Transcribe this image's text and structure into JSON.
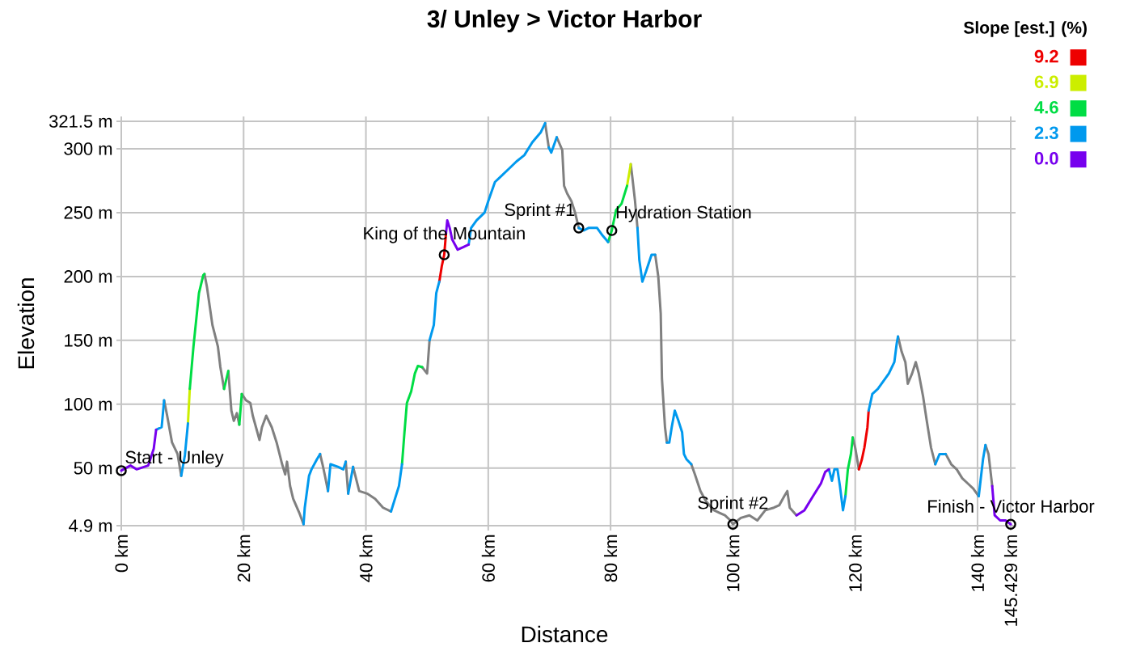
{
  "chart_data": {
    "type": "line",
    "title": "3/ Unley > Victor Harbor",
    "xlabel": "Distance",
    "ylabel": "Elevation",
    "legend_title": "Slope [est.] (%)",
    "legend": "top right",
    "line_style": "solid",
    "series": [
      {
        "color": "#808080",
        "x": [
          7.0,
          7.5,
          8.3,
          9.2,
          9.8,
          10.1,
          13.6,
          14.0,
          14.9,
          15.8,
          16.2,
          16.8,
          17.15,
          17.5,
          18.0,
          18.4,
          18.9,
          19.3,
          19.5,
          19.7,
          20.4,
          21.1,
          21.5,
          22.6,
          23.0,
          23.7,
          24.6,
          25.4,
          26.3,
          26.8,
          27.1,
          27.6,
          28.1,
          29.1,
          29.8,
          29.9,
          32.5,
          32.9,
          33.3,
          33.8,
          34.0,
          36.7,
          37.1,
          37.5,
          37.9,
          38.9,
          40.2,
          41.5,
          42.8,
          44.1,
          44.75,
          49.2,
          50.0,
          50.4,
          50.75,
          69.3,
          69.9,
          70.1,
          71.2,
          72.1,
          72.4,
          72.9,
          73.6,
          74.2,
          74.8,
          75.2,
          83.3,
          83.6,
          84.0,
          84.4,
          84.55,
          87.3,
          87.8,
          88.2,
          88.4,
          88.9,
          89.2,
          89.4,
          93.2,
          93.8,
          94.7,
          95.6,
          96.9,
          97.8,
          98.7,
          99.6,
          100.0,
          101.3,
          102.7,
          104.0,
          105.3,
          106.7,
          107.6,
          108.4,
          108.9,
          109.3,
          110.4,
          111.05,
          119.6,
          120.0,
          120.6,
          120.85,
          127.0,
          127.6,
          128.2,
          128.6,
          129.3,
          129.9,
          130.4,
          131.1,
          131.7,
          132.4,
          133.1,
          133.45,
          134.8,
          135.7,
          136.6,
          137.5,
          138.4,
          139.3,
          140.2,
          140.55,
          141.3,
          141.8,
          142.4
        ],
        "values": [
          103,
          91,
          70,
          61,
          44,
          null,
          202,
          192,
          162,
          145,
          129,
          112,
          null,
          126,
          95,
          87,
          93,
          84,
          null,
          108,
          103,
          101,
          91,
          72,
          82,
          91,
          82,
          70,
          53,
          45,
          55,
          36,
          26,
          15,
          6,
          null,
          61,
          53,
          44,
          32,
          null,
          55,
          30,
          null,
          51,
          32,
          30,
          26,
          19,
          16,
          null,
          129,
          124,
          150,
          null,
          320,
          301,
          null,
          309,
          299,
          271,
          265,
          259,
          250,
          238,
          null,
          288,
          276,
          259,
          238,
          null,
          217,
          200,
          171,
          120,
          82,
          70,
          null,
          53,
          45,
          32,
          24,
          17,
          15,
          13,
          9,
          6,
          11,
          13,
          9,
          17,
          19,
          21,
          28,
          32,
          19,
          13,
          null,
          74,
          66,
          49,
          null,
          153,
          141,
          133,
          116,
          124,
          133,
          124,
          106,
          87,
          66,
          53,
          null,
          61,
          53,
          49,
          42,
          38,
          34,
          28,
          null,
          68,
          61,
          36
        ]
      },
      {
        "name": "9.2",
        "color": "#ee0000",
        "x": [
          52.0,
          52.4,
          52.8,
          53.1,
          53.2,
          120.6,
          121.1,
          121.5,
          122.0,
          122.2
        ],
        "values": [
          196,
          208,
          217,
          234,
          null,
          49,
          57,
          66,
          82,
          95
        ]
      },
      {
        "name": "6.9",
        "color": "#ccee00",
        "x": [
          10.9,
          11.2,
          11.5,
          82.7,
          83.3
        ],
        "values": [
          85,
          112,
          null,
          271,
          288
        ]
      },
      {
        "name": "4.6",
        "color": "#00dd44",
        "x": [
          11.2,
          11.8,
          12.7,
          13.4,
          13.6,
          13.8,
          16.8,
          17.5,
          17.75,
          19.3,
          19.7,
          20.05,
          45.9,
          46.3,
          46.7,
          47.4,
          48.0,
          48.5,
          49.2,
          49.6,
          79.6,
          80.2,
          80.9,
          81.8,
          82.7,
          83.0,
          118.4,
          118.8,
          119.3,
          119.6
        ],
        "values": [
          112,
          145,
          187,
          201,
          202,
          null,
          112,
          126,
          null,
          84,
          108,
          null,
          53,
          78,
          101,
          110,
          124,
          130,
          129,
          null,
          227,
          236,
          252,
          257,
          271,
          null,
          28,
          49,
          61,
          74
        ]
      },
      {
        "name": "2.3",
        "color": "#0099ee",
        "x": [
          5.7,
          6.6,
          7.0,
          7.25,
          9.8,
          10.4,
          10.9,
          11.05,
          29.8,
          30.0,
          30.7,
          31.1,
          32.0,
          32.5,
          32.7,
          33.8,
          34.2,
          35.4,
          36.3,
          36.7,
          36.9,
          37.1,
          37.9,
          38.4,
          44.1,
          45.4,
          45.9,
          46.1,
          50.4,
          51.1,
          51.5,
          52.0,
          52.2,
          56.8,
          57.2,
          58.1,
          59.4,
          60.0,
          61.1,
          62.0,
          63.3,
          64.6,
          65.9,
          67.2,
          68.6,
          69.3,
          69.6,
          69.9,
          70.3,
          71.2,
          71.65,
          74.8,
          75.6,
          76.4,
          77.8,
          78.7,
          79.6,
          79.9,
          84.4,
          84.7,
          85.2,
          85.8,
          86.7,
          87.3,
          87.55,
          89.2,
          89.6,
          90.0,
          90.5,
          91.1,
          91.7,
          92.0,
          92.4,
          93.2,
          93.5,
          115.7,
          116.2,
          116.6,
          117.1,
          117.5,
          118.0,
          118.4,
          118.6,
          122.2,
          122.8,
          123.7,
          124.6,
          125.5,
          126.4,
          126.8,
          127.0,
          127.3,
          133.1,
          133.8,
          134.8,
          135.25,
          140.2,
          140.9,
          141.3
        ],
        "values": [
          80,
          82,
          103,
          null,
          44,
          60,
          85,
          null,
          6,
          19,
          44,
          49,
          57,
          61,
          null,
          32,
          53,
          51,
          49,
          55,
          null,
          30,
          51,
          null,
          16,
          36,
          53,
          null,
          150,
          162,
          187,
          196,
          null,
          225,
          238,
          244,
          250,
          259,
          274,
          278,
          284,
          290,
          295,
          305,
          313,
          320,
          null,
          301,
          297,
          309,
          null,
          238,
          236,
          238,
          238,
          232,
          227,
          null,
          238,
          213,
          196,
          204,
          217,
          217,
          null,
          70,
          70,
          82,
          95,
          87,
          78,
          61,
          57,
          53,
          null,
          49,
          40,
          49,
          49,
          36,
          17,
          28,
          null,
          95,
          108,
          112,
          118,
          124,
          133,
          148,
          153,
          null,
          53,
          61,
          61,
          null,
          28,
          57,
          68
        ]
      },
      {
        "name": "0.0",
        "color": "#7700ee",
        "x": [
          0,
          1.5,
          2.5,
          4.4,
          5.3,
          5.7,
          6.15,
          53.1,
          53.3,
          53.7,
          54.1,
          55.0,
          55.9,
          56.8,
          57.0,
          110.4,
          111.7,
          113.1,
          114.4,
          115.1,
          115.7,
          115.95,
          142.4,
          142.8,
          143.7,
          144.6,
          145.429
        ],
        "values": [
          48,
          52,
          49,
          52,
          65,
          80,
          null,
          234,
          244,
          238,
          229,
          221,
          223,
          225,
          null,
          13,
          17,
          28,
          38,
          47,
          49,
          null,
          36,
          13,
          9,
          9,
          6
        ]
      }
    ],
    "xlim": [
      0,
      145.429
    ],
    "xticks": [
      {
        "value": 0,
        "label": "0 km"
      },
      {
        "value": 20,
        "label": "20 km"
      },
      {
        "value": 40,
        "label": "40 km"
      },
      {
        "value": 60,
        "label": "60 km"
      },
      {
        "value": 80,
        "label": "80 km"
      },
      {
        "value": 100,
        "label": "100 km"
      },
      {
        "value": 120,
        "label": "120 km"
      },
      {
        "value": 140,
        "label": "140 km"
      },
      {
        "value": 145.429,
        "label": "145.429 km"
      }
    ],
    "ylim": [
      4.9,
      321.5
    ],
    "yticks": [
      {
        "value": 4.9,
        "label": "4.9 m"
      },
      {
        "value": 50,
        "label": "50 m"
      },
      {
        "value": 100,
        "label": "100 m"
      },
      {
        "value": 150,
        "label": "150 m"
      },
      {
        "value": 200,
        "label": "200 m"
      },
      {
        "value": 250,
        "label": "250 m"
      },
      {
        "value": 300,
        "label": "300 m"
      },
      {
        "value": 321.5,
        "label": "321.5 m"
      }
    ],
    "grid": true,
    "annotations": [
      {
        "text": "Start - Unley",
        "x": 0,
        "y": 48
      },
      {
        "text": "King of the Mountain",
        "x": 52.8,
        "y": 217
      },
      {
        "text": "Sprint #1",
        "x": 74.8,
        "y": 238
      },
      {
        "text": "Hydration Station",
        "x": 80.2,
        "y": 236
      },
      {
        "text": "Sprint #2",
        "x": 100,
        "y": 6
      },
      {
        "text": "Finish - Victor Harbor",
        "x": 145.429,
        "y": 6
      }
    ]
  }
}
